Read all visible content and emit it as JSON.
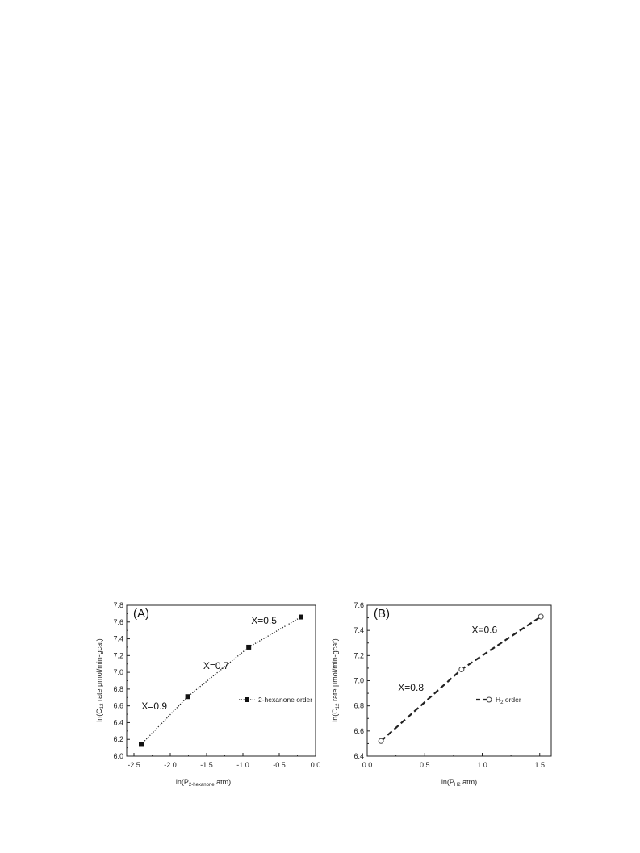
{
  "chart_data": [
    {
      "type": "line",
      "panel_label": "(A)",
      "xlabel": {
        "main": "ln(P",
        "sub": "2-hexanone",
        "tail": " atm)"
      },
      "ylabel": {
        "main": "ln(C",
        "sub": "12",
        "tail": " rate μmol/min-gcat)"
      },
      "xlim": [
        -2.6,
        0.0
      ],
      "ylim": [
        6.0,
        7.8
      ],
      "xticks": [
        -2.5,
        -2.0,
        -1.5,
        -1.0,
        -0.5,
        0.0
      ],
      "xtick_labels": [
        "-2.5",
        "-2.0",
        "-1.5",
        "-1.0",
        "-0.5",
        "0.0"
      ],
      "yticks": [
        6.0,
        6.2,
        6.4,
        6.6,
        6.8,
        7.0,
        7.2,
        7.4,
        7.6,
        7.8
      ],
      "ytick_labels": [
        "6.0",
        "6.2",
        "6.4",
        "6.6",
        "6.8",
        "7.0",
        "7.2",
        "7.4",
        "7.6",
        "7.8"
      ],
      "grid": false,
      "legend_placement": "right",
      "series": [
        {
          "name": "2-hexanone order",
          "marker": "filled-square",
          "line_style": "dotted",
          "x": [
            -2.4,
            -1.76,
            -0.92,
            -0.2
          ],
          "y": [
            6.14,
            6.71,
            7.3,
            7.66
          ]
        }
      ],
      "annotations": [
        {
          "text": "X=0.9",
          "x": -2.22,
          "y": 6.56
        },
        {
          "text": "X=0.7",
          "x": -1.37,
          "y": 7.04
        },
        {
          "text": "X=0.5",
          "x": -0.71,
          "y": 7.58
        }
      ]
    },
    {
      "type": "line",
      "panel_label": "(B)",
      "xlabel": {
        "main": "ln(P",
        "sub": "H2",
        "tail": " atm)"
      },
      "ylabel": {
        "main": "ln(C",
        "sub": "12",
        "tail": " rate μmol/min-gcat)"
      },
      "xlim": [
        0.0,
        1.6
      ],
      "ylim": [
        6.4,
        7.6
      ],
      "xticks": [
        0.0,
        0.5,
        1.0,
        1.5
      ],
      "xtick_labels": [
        "0.0",
        "0.5",
        "1.0",
        "1.5"
      ],
      "yticks": [
        6.4,
        6.6,
        6.8,
        7.0,
        7.2,
        7.4,
        7.6
      ],
      "ytick_labels": [
        "6.4",
        "6.6",
        "6.8",
        "7.0",
        "7.2",
        "7.4",
        "7.6"
      ],
      "grid": false,
      "legend_placement": "right",
      "series": [
        {
          "name": "H2 order",
          "legend_main": "H",
          "legend_sub": "2",
          "legend_tail": " order",
          "marker": "open-circle",
          "line_style": "dashed",
          "x": [
            0.12,
            0.82,
            1.51
          ],
          "y": [
            6.52,
            7.09,
            7.51
          ]
        }
      ],
      "annotations": [
        {
          "text": "X=0.8",
          "x": 0.38,
          "y": 6.92
        },
        {
          "text": "X=0.6",
          "x": 1.02,
          "y": 7.38
        }
      ]
    }
  ]
}
